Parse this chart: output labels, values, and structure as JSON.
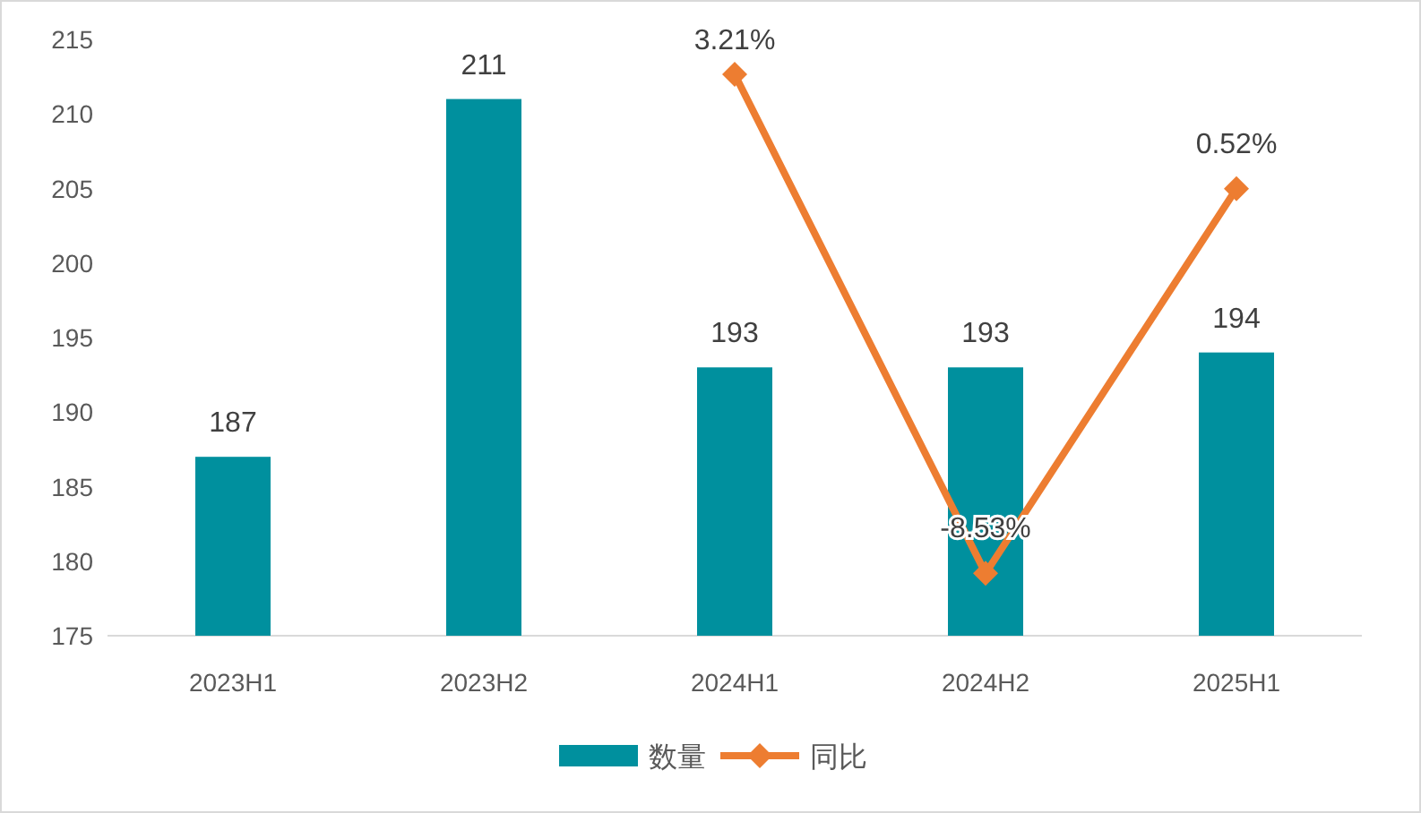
{
  "chart_data": {
    "type": "bar",
    "categories": [
      "2023H1",
      "2023H2",
      "2024H1",
      "2024H2",
      "2025H1"
    ],
    "series": [
      {
        "name": "数量",
        "color": "#00909e",
        "values": [
          187,
          211,
          193,
          193,
          194
        ]
      },
      {
        "name": "同比",
        "type": "line",
        "axis": "y2",
        "color": "#ed7d31",
        "marker": "diamond",
        "values": [
          null,
          null,
          3.21,
          -8.53,
          0.52
        ],
        "value_labels": [
          null,
          null,
          "3.21%",
          "-8.53%",
          "0.52%"
        ]
      }
    ],
    "data_labels": true,
    "ylim": [
      175,
      215
    ],
    "yticks": [
      175,
      180,
      185,
      190,
      195,
      200,
      205,
      210,
      215
    ],
    "tick_labels": "xy",
    "grid": false,
    "legend": "bottom"
  }
}
